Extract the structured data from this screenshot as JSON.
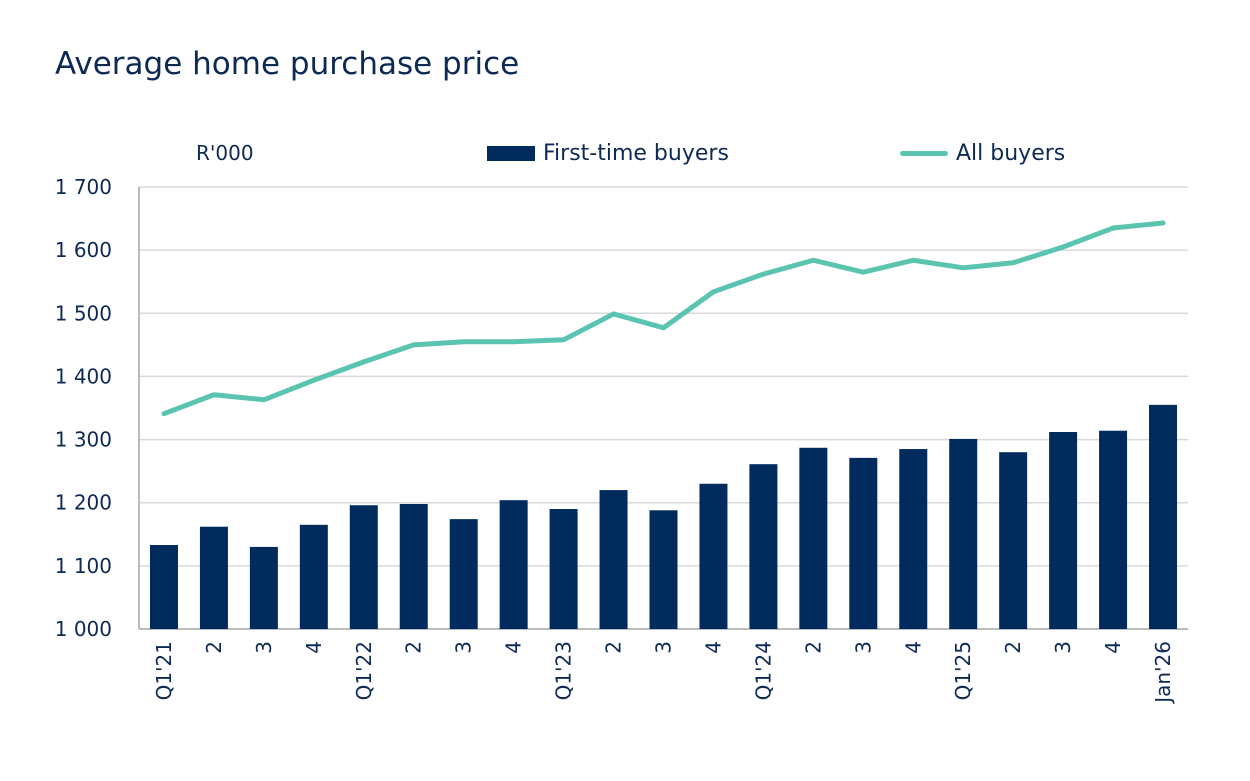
{
  "chart_data": {
    "type": "bar+line",
    "title": "Average home purchase price",
    "unit_label": "R'000",
    "ylim": [
      1000,
      1700
    ],
    "yticks": [
      1000,
      1100,
      1200,
      1300,
      1400,
      1500,
      1600,
      1700
    ],
    "ytick_labels": [
      "1 000",
      "1 100",
      "1 200",
      "1 300",
      "1 400",
      "1 500",
      "1 600",
      "1 700"
    ],
    "grid": true,
    "legend_position": "top",
    "categories": [
      "Q1'21",
      "2",
      "3",
      "4",
      "Q1'22",
      "2",
      "3",
      "4",
      "Q1'23",
      "2",
      "3",
      "4",
      "Q1'24",
      "2",
      "3",
      "4",
      "Q1'25",
      "2",
      "3",
      "4",
      "Jan'26"
    ],
    "series": [
      {
        "name": "First-time buyers",
        "type": "bar",
        "color": "#002b5c",
        "values": [
          1133,
          1162,
          1130,
          1165,
          1196,
          1198,
          1174,
          1204,
          1190,
          1220,
          1188,
          1230,
          1261,
          1287,
          1271,
          1285,
          1301,
          1280,
          1312,
          1314,
          1355
        ]
      },
      {
        "name": "All buyers",
        "type": "line",
        "color": "#5bc4b1",
        "values": [
          1341,
          1371,
          1363,
          1394,
          1423,
          1450,
          1455,
          1455,
          1458,
          1499,
          1477,
          1534,
          1562,
          1584,
          1565,
          1584,
          1572,
          1580,
          1605,
          1635,
          1643
        ]
      }
    ]
  }
}
